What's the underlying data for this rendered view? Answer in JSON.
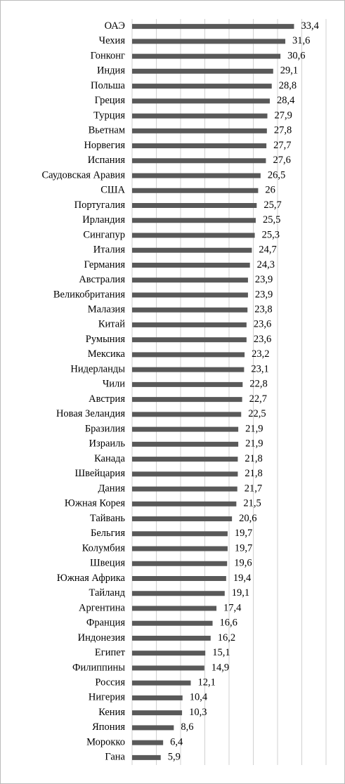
{
  "chart_data": {
    "type": "hbar",
    "categories": [
      "ОАЭ",
      "Чехия",
      "Гонконг",
      "Индия",
      "Польша",
      "Греция",
      "Турция",
      "Вьетнам",
      "Норвегия",
      "Испания",
      "Саудовская Аравия",
      "США",
      "Португалия",
      "Ирландия",
      "Сингапур",
      "Италия",
      "Германия",
      "Австралия",
      "Великобритания",
      "Малазия",
      "Китай",
      "Румыния",
      "Мексика",
      "Нидерланды",
      "Чили",
      "Австрия",
      "Новая Зеландия",
      "Бразилия",
      "Израиль",
      "Канада",
      "Швейцария",
      "Дания",
      "Южная Корея",
      "Тайвань",
      "Бельгия",
      "Колумбия",
      "Швеция",
      "Южная Африка",
      "Тайланд",
      "Аргентина",
      "Франция",
      "Индонезия",
      "Египет",
      "Филиппины",
      "Россия",
      "Нигерия",
      "Кения",
      "Япония",
      "Морокко",
      "Гана"
    ],
    "values": [
      33.4,
      31.6,
      30.6,
      29.1,
      28.8,
      28.4,
      27.9,
      27.8,
      27.7,
      27.6,
      26.5,
      26,
      25.7,
      25.5,
      25.3,
      24.7,
      24.3,
      23.9,
      23.9,
      23.8,
      23.6,
      23.6,
      23.2,
      23.1,
      22.8,
      22.7,
      22.5,
      21.9,
      21.9,
      21.8,
      21.8,
      21.7,
      21.5,
      20.6,
      19.7,
      19.7,
      19.6,
      19.4,
      19.1,
      17.4,
      16.6,
      16.2,
      15.1,
      14.9,
      12.1,
      10.4,
      10.3,
      8.6,
      6.4,
      5.9
    ],
    "value_labels": [
      "33,4",
      "31,6",
      "30,6",
      "29,1",
      "28,8",
      "28,4",
      "27,9",
      "27,8",
      "27,7",
      "27,6",
      "26,5",
      "26",
      "25,7",
      "25,5",
      "25,3",
      "24,7",
      "24,3",
      "23,9",
      "23,9",
      "23,8",
      "23,6",
      "23,6",
      "23,2",
      "23,1",
      "22,8",
      "22,7",
      "22,5",
      "21,9",
      "21,9",
      "21,8",
      "21,8",
      "21,7",
      "21,5",
      "20,6",
      "19,7",
      "19,7",
      "19,6",
      "19,4",
      "19,1",
      "17,4",
      "16,6",
      "16,2",
      "15,1",
      "14,9",
      "12,1",
      "10,4",
      "10,3",
      "8,6",
      "6,4",
      "5,9"
    ],
    "color": "#595959",
    "xlim": [
      0,
      40
    ],
    "xticks": [
      0,
      5,
      10,
      15,
      20,
      25,
      30,
      35,
      40
    ],
    "grid": true
  }
}
